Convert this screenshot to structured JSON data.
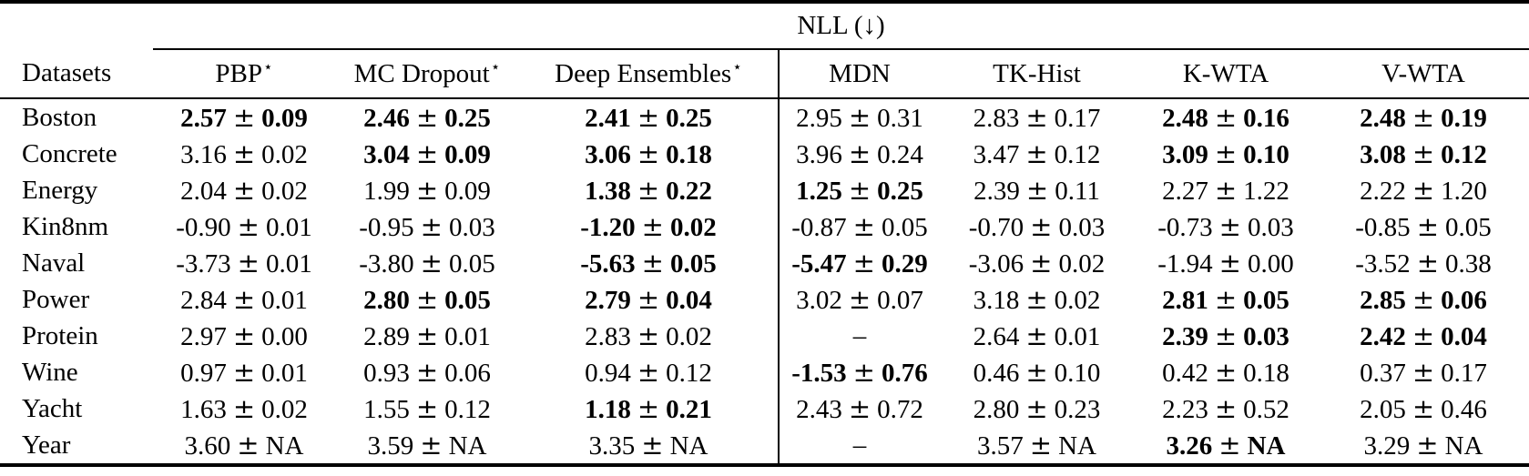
{
  "table": {
    "group_header": "NLL (↓)",
    "pm": "±",
    "columns": [
      {
        "label": "Datasets",
        "sup": ""
      },
      {
        "label": "PBP",
        "sup": "⋆"
      },
      {
        "label": "MC Dropout",
        "sup": "⋆"
      },
      {
        "label": "Deep Ensembles",
        "sup": "⋆"
      },
      {
        "label": "MDN",
        "sup": ""
      },
      {
        "label": "TK-Hist",
        "sup": ""
      },
      {
        "label": "K-WTA",
        "sup": ""
      },
      {
        "label": "V-WTA",
        "sup": ""
      }
    ],
    "rows": [
      {
        "dataset": "Boston",
        "cells": [
          {
            "mean": "2.57",
            "std": "0.09",
            "bold": true
          },
          {
            "mean": "2.46",
            "std": "0.25",
            "bold": true
          },
          {
            "mean": "2.41",
            "std": "0.25",
            "bold": true
          },
          {
            "mean": "2.95",
            "std": "0.31",
            "bold": false
          },
          {
            "mean": "2.83",
            "std": "0.17",
            "bold": false
          },
          {
            "mean": "2.48",
            "std": "0.16",
            "bold": true
          },
          {
            "mean": "2.48",
            "std": "0.19",
            "bold": true
          }
        ]
      },
      {
        "dataset": "Concrete",
        "cells": [
          {
            "mean": "3.16",
            "std": "0.02",
            "bold": false
          },
          {
            "mean": "3.04",
            "std": "0.09",
            "bold": true
          },
          {
            "mean": "3.06",
            "std": "0.18",
            "bold": true
          },
          {
            "mean": "3.96",
            "std": "0.24",
            "bold": false
          },
          {
            "mean": "3.47",
            "std": "0.12",
            "bold": false
          },
          {
            "mean": "3.09",
            "std": "0.10",
            "bold": true
          },
          {
            "mean": "3.08",
            "std": "0.12",
            "bold": true
          }
        ]
      },
      {
        "dataset": "Energy",
        "cells": [
          {
            "mean": "2.04",
            "std": "0.02",
            "bold": false
          },
          {
            "mean": "1.99",
            "std": "0.09",
            "bold": false
          },
          {
            "mean": "1.38",
            "std": "0.22",
            "bold": true
          },
          {
            "mean": "1.25",
            "std": "0.25",
            "bold": true
          },
          {
            "mean": "2.39",
            "std": "0.11",
            "bold": false
          },
          {
            "mean": "2.27",
            "std": "1.22",
            "bold": false
          },
          {
            "mean": "2.22",
            "std": "1.20",
            "bold": false
          }
        ]
      },
      {
        "dataset": "Kin8nm",
        "cells": [
          {
            "mean": "-0.90",
            "std": "0.01",
            "bold": false
          },
          {
            "mean": "-0.95",
            "std": "0.03",
            "bold": false
          },
          {
            "mean": "-1.20",
            "std": "0.02",
            "bold": true
          },
          {
            "mean": "-0.87",
            "std": "0.05",
            "bold": false
          },
          {
            "mean": "-0.70",
            "std": "0.03",
            "bold": false
          },
          {
            "mean": "-0.73",
            "std": "0.03",
            "bold": false
          },
          {
            "mean": "-0.85",
            "std": "0.05",
            "bold": false
          }
        ]
      },
      {
        "dataset": "Naval",
        "cells": [
          {
            "mean": "-3.73",
            "std": "0.01",
            "bold": false
          },
          {
            "mean": "-3.80",
            "std": "0.05",
            "bold": false
          },
          {
            "mean": "-5.63",
            "std": "0.05",
            "bold": true
          },
          {
            "mean": "-5.47",
            "std": "0.29",
            "bold": true
          },
          {
            "mean": "-3.06",
            "std": "0.02",
            "bold": false
          },
          {
            "mean": "-1.94",
            "std": "0.00",
            "bold": false
          },
          {
            "mean": "-3.52",
            "std": "0.38",
            "bold": false
          }
        ]
      },
      {
        "dataset": "Power",
        "cells": [
          {
            "mean": "2.84",
            "std": "0.01",
            "bold": false
          },
          {
            "mean": "2.80",
            "std": "0.05",
            "bold": true
          },
          {
            "mean": "2.79",
            "std": "0.04",
            "bold": true
          },
          {
            "mean": "3.02",
            "std": "0.07",
            "bold": false
          },
          {
            "mean": "3.18",
            "std": "0.02",
            "bold": false
          },
          {
            "mean": "2.81",
            "std": "0.05",
            "bold": true
          },
          {
            "mean": "2.85",
            "std": "0.06",
            "bold": true
          }
        ]
      },
      {
        "dataset": "Protein",
        "cells": [
          {
            "mean": "2.97",
            "std": "0.00",
            "bold": false
          },
          {
            "mean": "2.89",
            "std": "0.01",
            "bold": false
          },
          {
            "mean": "2.83",
            "std": "0.02",
            "bold": false
          },
          {
            "mean": "–",
            "std": null,
            "bold": false
          },
          {
            "mean": "2.64",
            "std": "0.01",
            "bold": false
          },
          {
            "mean": "2.39",
            "std": "0.03",
            "bold": true
          },
          {
            "mean": "2.42",
            "std": "0.04",
            "bold": true
          }
        ]
      },
      {
        "dataset": "Wine",
        "cells": [
          {
            "mean": "0.97",
            "std": "0.01",
            "bold": false
          },
          {
            "mean": "0.93",
            "std": "0.06",
            "bold": false
          },
          {
            "mean": "0.94",
            "std": "0.12",
            "bold": false
          },
          {
            "mean": "-1.53",
            "std": "0.76",
            "bold": true
          },
          {
            "mean": "0.46",
            "std": "0.10",
            "bold": false
          },
          {
            "mean": "0.42",
            "std": "0.18",
            "bold": false
          },
          {
            "mean": "0.37",
            "std": "0.17",
            "bold": false
          }
        ]
      },
      {
        "dataset": "Yacht",
        "cells": [
          {
            "mean": "1.63",
            "std": "0.02",
            "bold": false
          },
          {
            "mean": "1.55",
            "std": "0.12",
            "bold": false
          },
          {
            "mean": "1.18",
            "std": "0.21",
            "bold": true
          },
          {
            "mean": "2.43",
            "std": "0.72",
            "bold": false
          },
          {
            "mean": "2.80",
            "std": "0.23",
            "bold": false
          },
          {
            "mean": "2.23",
            "std": "0.52",
            "bold": false
          },
          {
            "mean": "2.05",
            "std": "0.46",
            "bold": false
          }
        ]
      },
      {
        "dataset": "Year",
        "cells": [
          {
            "mean": "3.60",
            "std": "NA",
            "bold": false
          },
          {
            "mean": "3.59",
            "std": "NA",
            "bold": false
          },
          {
            "mean": "3.35",
            "std": "NA",
            "bold": false
          },
          {
            "mean": "–",
            "std": null,
            "bold": false
          },
          {
            "mean": "3.57",
            "std": "NA",
            "bold": false
          },
          {
            "mean": "3.26",
            "std": "NA",
            "bold": true
          },
          {
            "mean": "3.29",
            "std": "NA",
            "bold": false
          }
        ]
      }
    ]
  }
}
